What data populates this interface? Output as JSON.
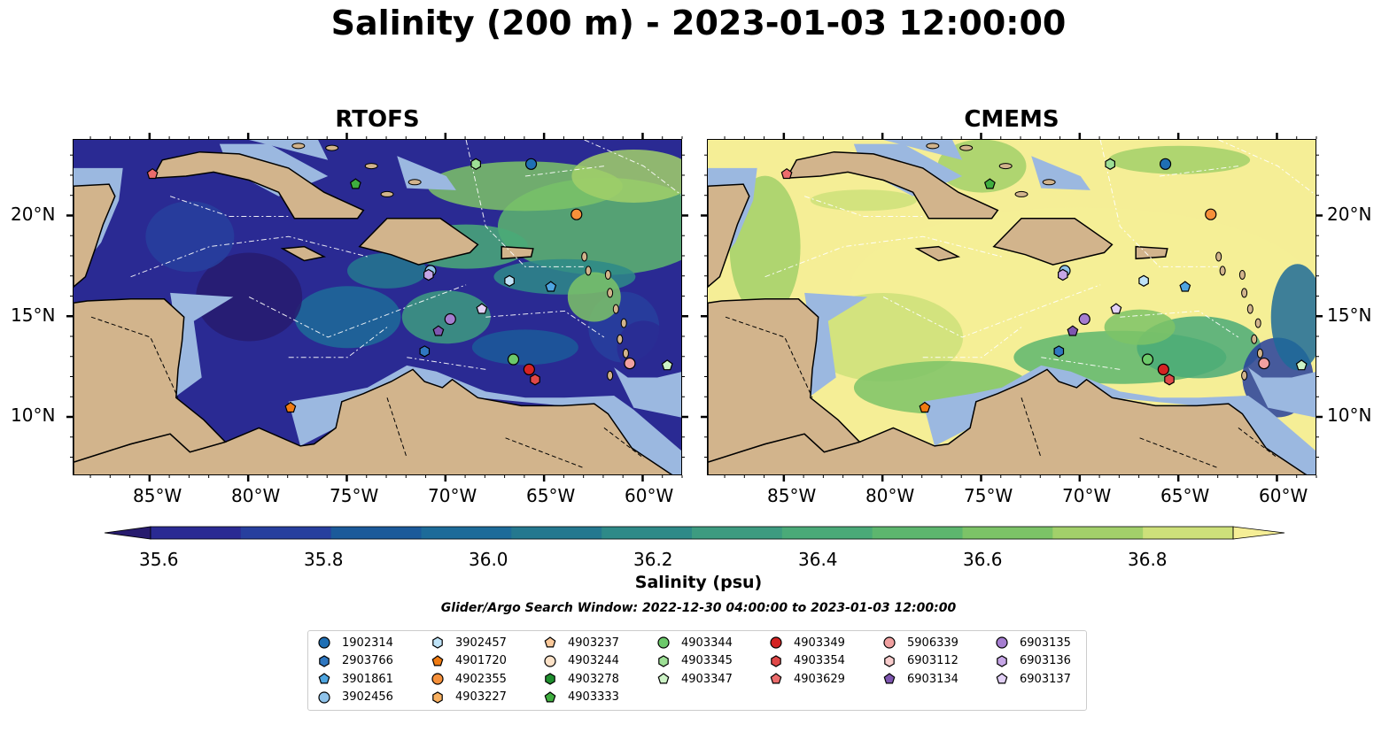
{
  "title": "Salinity (200 m) - 2023-01-03 12:00:00",
  "panels": [
    {
      "title": "RTOFS",
      "theme": "fresh"
    },
    {
      "title": "CMEMS",
      "theme": "salty"
    }
  ],
  "lon_labels": [
    "85°W",
    "80°W",
    "75°W",
    "70°W",
    "65°W",
    "60°W"
  ],
  "lat_labels": [
    "20°N",
    "15°N",
    "10°N"
  ],
  "colorbar": {
    "label": "Salinity (psu)",
    "tick_labels": [
      "35.6",
      "35.8",
      "36.0",
      "36.2",
      "36.4",
      "36.6",
      "36.8"
    ],
    "colors": [
      "#271b6e",
      "#2a2a93",
      "#273f9e",
      "#1b5a9a",
      "#1d6b99",
      "#24788f",
      "#2e8a88",
      "#3d9b80",
      "#4aaa78",
      "#5db66e",
      "#7cc367",
      "#a2d06a",
      "#cde07a",
      "#f5ee96"
    ]
  },
  "search_window": "Glider/Argo Search Window: 2022-12-30 04:00:00 to 2023-01-03 12:00:00",
  "legend": [
    {
      "id": "1902314",
      "shape": "circle",
      "color": "#1f6fb4"
    },
    {
      "id": "2903766",
      "shape": "hexagon",
      "color": "#2f77c0"
    },
    {
      "id": "3901861",
      "shape": "pentagon",
      "color": "#4ea5e0"
    },
    {
      "id": "3902456",
      "shape": "circle",
      "color": "#8fc3ea"
    },
    {
      "id": "3902457",
      "shape": "hexagon",
      "color": "#bfe3f7"
    },
    {
      "id": "4901720",
      "shape": "pentagon",
      "color": "#f07b12"
    },
    {
      "id": "4902355",
      "shape": "circle",
      "color": "#f6903a"
    },
    {
      "id": "4903227",
      "shape": "hexagon",
      "color": "#f8b060"
    },
    {
      "id": "4903237",
      "shape": "pentagon",
      "color": "#fbc99a"
    },
    {
      "id": "4903244",
      "shape": "circle",
      "color": "#fde2c8"
    },
    {
      "id": "4903278",
      "shape": "hexagon",
      "color": "#1f8f2e"
    },
    {
      "id": "4903333",
      "shape": "pentagon",
      "color": "#3fae3f"
    },
    {
      "id": "4903344",
      "shape": "circle",
      "color": "#6cc96a"
    },
    {
      "id": "4903345",
      "shape": "hexagon",
      "color": "#9ddf95"
    },
    {
      "id": "4903347",
      "shape": "pentagon",
      "color": "#cdf3c6"
    },
    {
      "id": "4903349",
      "shape": "circle",
      "color": "#d42323"
    },
    {
      "id": "4903354",
      "shape": "hexagon",
      "color": "#e04848"
    },
    {
      "id": "4903629",
      "shape": "pentagon",
      "color": "#ec6c6c"
    },
    {
      "id": "5906339",
      "shape": "circle",
      "color": "#f0a0a0"
    },
    {
      "id": "6903112",
      "shape": "hexagon",
      "color": "#f8cccc"
    },
    {
      "id": "6903134",
      "shape": "pentagon",
      "color": "#7e56b0"
    },
    {
      "id": "6903135",
      "shape": "circle",
      "color": "#a57dd0"
    },
    {
      "id": "6903136",
      "shape": "hexagon",
      "color": "#c6a6e6"
    },
    {
      "id": "6903137",
      "shape": "pentagon",
      "color": "#e2d0f6"
    }
  ],
  "markers": [
    {
      "id": "4903629",
      "lon": -84.9,
      "lat": 22.1
    },
    {
      "id": "4903333",
      "lon": -74.6,
      "lat": 21.6
    },
    {
      "id": "4903345",
      "lon": -68.5,
      "lat": 22.6
    },
    {
      "id": "1902314",
      "lon": -65.7,
      "lat": 22.6
    },
    {
      "id": "4902355",
      "lon": -63.4,
      "lat": 20.1
    },
    {
      "id": "3902456",
      "lon": -70.8,
      "lat": 17.3
    },
    {
      "id": "6903136",
      "lon": -70.9,
      "lat": 17.1
    },
    {
      "id": "3902457",
      "lon": -66.8,
      "lat": 16.8
    },
    {
      "id": "3901861",
      "lon": -64.7,
      "lat": 16.5
    },
    {
      "id": "6903137",
      "lon": -68.2,
      "lat": 15.4
    },
    {
      "id": "6903135",
      "lon": -69.8,
      "lat": 14.9
    },
    {
      "id": "6903134",
      "lon": -70.4,
      "lat": 14.3
    },
    {
      "id": "2903766",
      "lon": -71.1,
      "lat": 13.3
    },
    {
      "id": "4903344",
      "lon": -66.6,
      "lat": 12.9
    },
    {
      "id": "4903349",
      "lon": -65.8,
      "lat": 12.4
    },
    {
      "id": "4903354",
      "lon": -65.5,
      "lat": 11.9
    },
    {
      "id": "5906339",
      "lon": -60.7,
      "lat": 12.7
    },
    {
      "id": "4903347",
      "lon": -58.8,
      "lat": 12.6
    },
    {
      "id": "4901720",
      "lon": -77.9,
      "lat": 10.5
    }
  ]
}
